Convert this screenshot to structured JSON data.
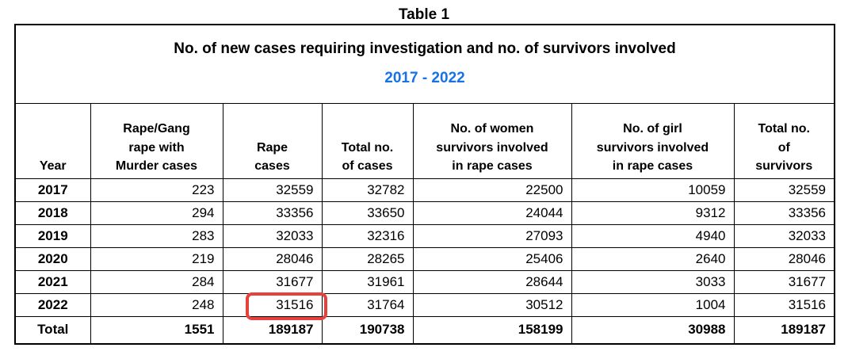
{
  "caption": "Table 1",
  "colors": {
    "subtitle_blue": "#1772E8",
    "highlight_red": "#E8403A",
    "border": "#000000",
    "text": "#000000"
  },
  "table": {
    "title": "No. of new cases requiring investigation and no. of survivors involved",
    "subtitle": "2017 - 2022",
    "headers": [
      "Year",
      "Rape/Gang\nrape with\nMurder cases",
      "Rape\ncases",
      "Total no.\nof cases",
      "No. of women\nsurvivors involved\nin rape cases",
      "No. of girl\nsurvivors involved\nin rape cases",
      "Total no.\nof\nsurvivors"
    ]
  },
  "chart_data": {
    "type": "table",
    "title": "No. of new cases requiring investigation and no. of survivors involved",
    "subtitle": "2017 - 2022",
    "columns": [
      "Year",
      "Rape/Gang rape with Murder cases",
      "Rape cases",
      "Total no. of cases",
      "No. of women survivors involved in rape cases",
      "No. of girl survivors involved in rape cases",
      "Total no. of survivors"
    ],
    "rows": [
      [
        "2017",
        "223",
        "32559",
        "32782",
        "22500",
        "10059",
        "32559"
      ],
      [
        "2018",
        "294",
        "33356",
        "33650",
        "24044",
        "9312",
        "33356"
      ],
      [
        "2019",
        "283",
        "32033",
        "32316",
        "27093",
        "4940",
        "32033"
      ],
      [
        "2020",
        "219",
        "28046",
        "28265",
        "25406",
        "2640",
        "28046"
      ],
      [
        "2021",
        "284",
        "31677",
        "31961",
        "28644",
        "3033",
        "31677"
      ],
      [
        "2022",
        "248",
        "31516",
        "31764",
        "30512",
        "1004",
        "31516"
      ],
      [
        "Total",
        "1551",
        "189187",
        "190738",
        "158199",
        "30988",
        "189187"
      ]
    ],
    "highlight_cell": {
      "row": "2022",
      "column": "Rape cases",
      "value": "31516",
      "style": "red rounded box annotation"
    }
  }
}
